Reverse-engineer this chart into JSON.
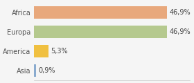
{
  "categories": [
    "Africa",
    "Europa",
    "America",
    "Asia"
  ],
  "values": [
    46.9,
    46.9,
    5.3,
    0.9
  ],
  "labels": [
    "46,9%",
    "46,9%",
    "5,3%",
    "0,9%"
  ],
  "bar_colors": [
    "#e8a87c",
    "#b5c98e",
    "#f0c040",
    "#8aabcf"
  ],
  "background_color": "#f5f5f5",
  "xlim": [
    0,
    55
  ],
  "bar_height": 0.65,
  "label_fontsize": 7,
  "category_fontsize": 7
}
